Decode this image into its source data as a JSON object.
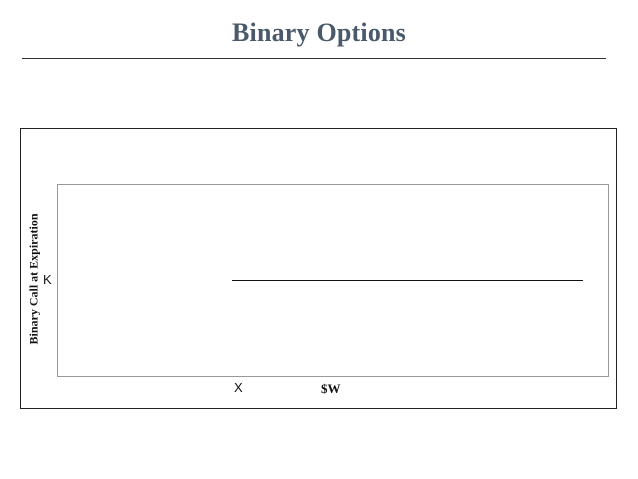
{
  "slide": {
    "title": "Binary Options"
  },
  "diagram": {
    "y_axis_label": "Binary Call at Expiration",
    "x_axis_label": "$W",
    "payoff_level_label": "K",
    "strike_label": "X"
  }
}
